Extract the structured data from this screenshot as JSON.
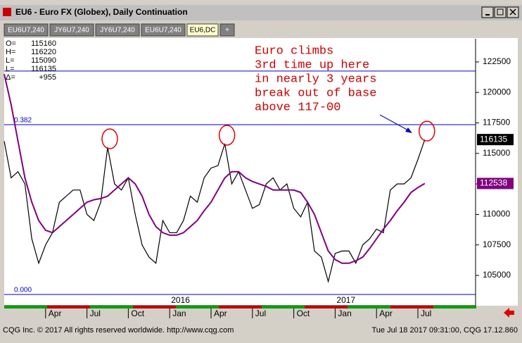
{
  "window": {
    "title": "EU6 - Euro FX (Globex), Daily Continuation",
    "tabs": [
      "EU6U7,240",
      "JY6U7,240",
      "JY6U7,240",
      "EU6U7,240",
      "EU6,DC",
      "+"
    ]
  },
  "info": [
    {
      "label": "O=",
      "value": "115160"
    },
    {
      "label": "H=",
      "value": "116220"
    },
    {
      "label": "L=",
      "value": "115090"
    },
    {
      "label": "L=",
      "value": "116135"
    },
    {
      "label": "Δ=",
      "value": "+955"
    }
  ],
  "annotation": [
    "Euro climbs",
    "3rd time up here",
    "in nearly 3 years",
    "break out of base",
    "above 117-00"
  ],
  "footer": {
    "left": "CQG Inc. © 2017 All rights reserved worldwide. http://www.cqg.com",
    "right": "Tue Jul 18 2017 09:31:00, CQG 17.12.860"
  },
  "chart_data": {
    "type": "line",
    "categories": [
      null,
      null,
      null,
      null,
      null,
      null,
      "Apr",
      null,
      null,
      null,
      null,
      null,
      "Jul",
      null,
      null,
      null,
      null,
      null,
      "Oct",
      null,
      null,
      null,
      null,
      null,
      "Jan",
      null,
      null,
      null,
      null,
      null,
      "Apr",
      null,
      null,
      null,
      null,
      null,
      "Jul",
      null,
      null,
      null,
      null,
      null,
      "Oct",
      null,
      null,
      null,
      null,
      null,
      "Jan",
      null,
      null,
      null,
      null,
      null,
      "Apr",
      null,
      null,
      null,
      null,
      null,
      "Jul",
      null
    ],
    "years": [
      null,
      null,
      null,
      null,
      null,
      null,
      null,
      null,
      null,
      null,
      null,
      null,
      null,
      null,
      null,
      null,
      null,
      null,
      null,
      null,
      null,
      null,
      null,
      null,
      "2016",
      null,
      null,
      null,
      null,
      null,
      null,
      null,
      null,
      null,
      null,
      null,
      null,
      null,
      null,
      null,
      null,
      null,
      null,
      null,
      null,
      null,
      null,
      null,
      "2017",
      null,
      null,
      null,
      null,
      null,
      null,
      null,
      null,
      null,
      null,
      null,
      null,
      null
    ],
    "series": [
      {
        "name": "Price",
        "color": "#000000",
        "values": [
          116000,
          113000,
          113500,
          112500,
          108000,
          106000,
          107500,
          108500,
          111000,
          111500,
          112000,
          112000,
          110000,
          109500,
          111000,
          115500,
          112500,
          112000,
          113000,
          110000,
          107500,
          106500,
          106000,
          109500,
          108500,
          108500,
          109500,
          111500,
          111000,
          113000,
          113800,
          114000,
          115800,
          112500,
          113500,
          112000,
          110500,
          110800,
          112500,
          113000,
          112000,
          112500,
          110500,
          109800,
          111000,
          107000,
          106500,
          104500,
          106800,
          107000,
          107000,
          106000,
          107500,
          108000,
          108800,
          108500,
          112000,
          112500,
          112500,
          113000,
          114500,
          116135
        ]
      },
      {
        "name": "Moving Average",
        "color": "#800080",
        "values": [
          121500,
          119000,
          116000,
          113000,
          111000,
          109500,
          108700,
          108500,
          109000,
          109500,
          110000,
          110500,
          111000,
          111200,
          111300,
          111500,
          112000,
          112500,
          113000,
          112500,
          111500,
          110000,
          109000,
          108500,
          108300,
          108300,
          108500,
          109000,
          109500,
          110300,
          111000,
          112000,
          113000,
          113500,
          113500,
          113000,
          112700,
          112500,
          112300,
          112000,
          112000,
          112000,
          112000,
          111800,
          111000,
          110000,
          108500,
          107000,
          106300,
          106000,
          106000,
          106200,
          106500,
          107200,
          108000,
          108800,
          109500,
          110300,
          111000,
          111800,
          112200,
          112538
        ]
      }
    ],
    "levels": [
      {
        "label": "0.382",
        "value": 117360
      },
      {
        "label": "0.000",
        "value": 103440
      }
    ],
    "resistance": 121750,
    "ylim": [
      103040,
      124400
    ],
    "yticks": [
      105000,
      107500,
      110000,
      112500,
      115000,
      117500,
      120000,
      122500
    ],
    "grid": false
  }
}
